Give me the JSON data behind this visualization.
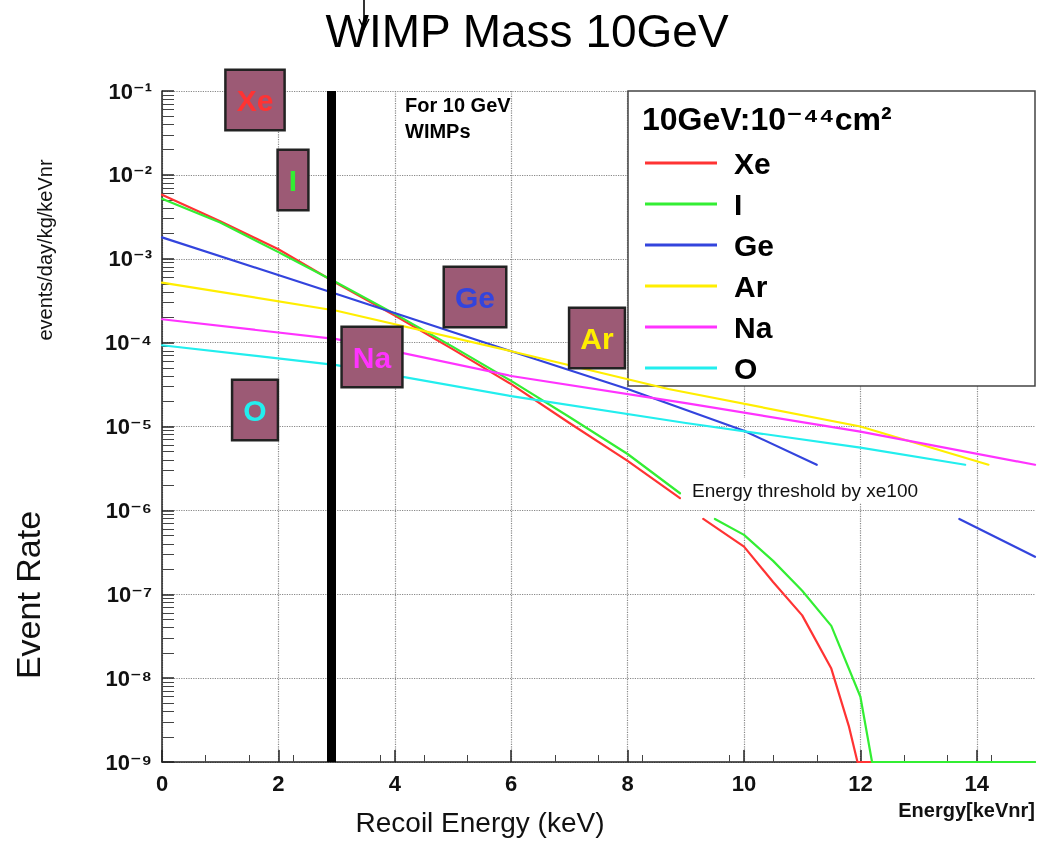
{
  "chart_data": {
    "type": "line",
    "title": "WIMP Mass 10GeV",
    "xlabel": "Recoil Energy (keV)",
    "ylabel": "Event Rate",
    "legend_title": "10GeV:10⁻⁴⁴cm²",
    "series": [
      {
        "name": "Xe",
        "color": "#ff3333",
        "x": [
          0,
          1,
          2,
          3,
          4,
          5,
          6,
          7,
          8,
          8.9,
          9.1,
          9.3,
          10,
          10.5,
          11,
          11.5,
          11.8,
          11.95,
          12.2
        ],
        "values": [
          0.0058,
          0.0028,
          0.0013,
          0.00051,
          0.00021,
          8.3e-05,
          3.2e-05,
          1.1e-05,
          3.9e-06,
          1.4e-06,
          null,
          7.9e-07,
          3.7e-07,
          1.4e-07,
          5.6e-08,
          1.3e-08,
          2.7e-09,
          1e-09,
          1e-09
        ]
      },
      {
        "name": "I",
        "color": "#33ee33",
        "x": [
          0,
          1,
          2,
          3,
          4,
          5,
          6,
          7,
          8,
          8.9,
          9.2,
          9.5,
          10,
          10.5,
          11,
          11.5,
          12,
          12.2,
          15
        ],
        "values": [
          0.0052,
          0.0027,
          0.0012,
          0.00052,
          0.00022,
          8.9e-05,
          3.5e-05,
          1.3e-05,
          4.7e-06,
          1.6e-06,
          null,
          7.9e-07,
          5.1e-07,
          2.5e-07,
          1.1e-07,
          4.2e-08,
          6e-09,
          1e-09,
          1e-09
        ]
      },
      {
        "name": "Ge",
        "color": "#3344dd",
        "x": [
          0,
          3,
          6,
          8,
          10,
          11.25,
          12,
          13.7,
          15
        ],
        "values": [
          0.0018,
          0.00038,
          7.9e-05,
          2.8e-05,
          8.9e-06,
          3.5e-06,
          null,
          7.9e-07,
          2.8e-07
        ]
      },
      {
        "name": "Ar",
        "color": "#ffee00",
        "x": [
          0,
          3,
          6,
          8.7,
          12,
          14.2
        ],
        "values": [
          0.00052,
          0.00024,
          7.9e-05,
          2.8e-05,
          1e-05,
          3.5e-06
        ]
      },
      {
        "name": "Na",
        "color": "#ff33ff",
        "x": [
          0,
          3,
          6,
          9,
          12,
          15
        ],
        "values": [
          0.00019,
          0.00011,
          4e-05,
          1.9e-05,
          8.7e-06,
          3.5e-06
        ]
      },
      {
        "name": "O",
        "color": "#22eeee",
        "x": [
          0,
          3,
          6,
          9,
          12,
          13.8
        ],
        "values": [
          9.3e-05,
          5.4e-05,
          2.3e-05,
          1.1e-05,
          5.6e-06,
          3.5e-06
        ]
      }
    ],
    "annotations": [
      "Xe",
      "I",
      "Ge",
      "Ar",
      "Na",
      "O",
      "For 10 GeV\nWIMPs",
      "Energy threshold by xe100",
      "Energy[keVnr]",
      "events/day/kg/keVnr"
    ],
    "ref_lines": [
      {
        "axis": "x",
        "value": 2.9,
        "color": "#000000"
      }
    ],
    "xlim": [
      0,
      15
    ],
    "xticks": [
      0,
      2,
      4,
      6,
      8,
      10,
      12,
      14
    ],
    "ylim": [
      1e-09,
      0.1
    ],
    "yticks": [
      {
        "value": 1e-09,
        "label": "10⁻⁹"
      },
      {
        "value": 1e-08,
        "label": "10⁻⁸"
      },
      {
        "value": 1e-07,
        "label": "10⁻⁷"
      },
      {
        "value": 1e-06,
        "label": "10⁻⁶"
      },
      {
        "value": 1e-05,
        "label": "10⁻⁵"
      },
      {
        "value": 0.0001,
        "label": "10⁻⁴"
      },
      {
        "value": 0.001,
        "label": "10⁻³"
      },
      {
        "value": 0.01,
        "label": "10⁻²"
      },
      {
        "value": 0.1,
        "label": "10⁻¹"
      }
    ],
    "log": "y",
    "grid": true,
    "legend": "top right",
    "marker": "none",
    "line_style": "solid"
  }
}
